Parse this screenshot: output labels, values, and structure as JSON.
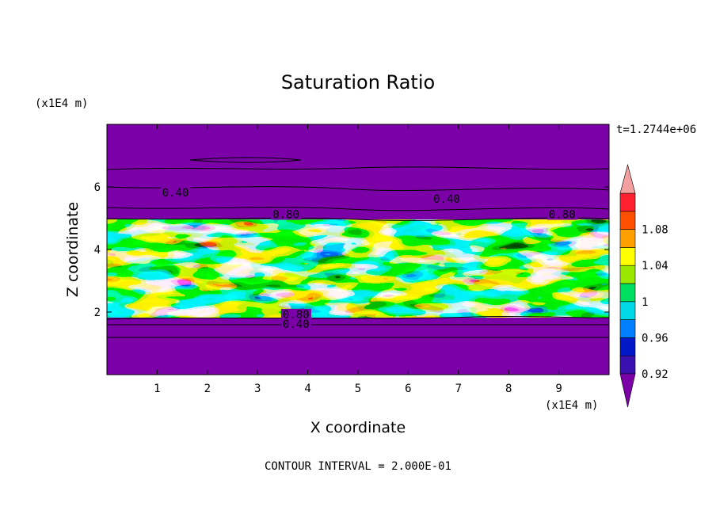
{
  "chart_data": {
    "type": "heatmap",
    "title": "Saturation Ratio",
    "xlabel": "X coordinate",
    "ylabel": "Z coordinate",
    "x_unit": "(x1E4 m)",
    "y_unit": "(x1E4 m)",
    "time_label": "t=1.2744e+06",
    "footer": "CONTOUR INTERVAL = 2.000E-01",
    "xlim": [
      0,
      10
    ],
    "ylim": [
      0,
      8
    ],
    "x_ticks": [
      "1",
      "2",
      "3",
      "4",
      "5",
      "6",
      "7",
      "8",
      "9"
    ],
    "y_ticks": [
      "2",
      "4",
      "6"
    ],
    "colorbar": {
      "levels": [
        0.92,
        0.94,
        0.96,
        0.98,
        1.0,
        1.02,
        1.04,
        1.06,
        1.08,
        1.1
      ],
      "labels": [
        "0.92",
        "0.96",
        "1",
        "1.04",
        "1.08"
      ],
      "colors": [
        "#7b00a8",
        "#3a10b0",
        "#0018c8",
        "#0080ff",
        "#00d8e8",
        "#00e060",
        "#9ae800",
        "#ffff00",
        "#ffa000",
        "#ff5000",
        "#ff2030",
        "#f5a0a0"
      ]
    },
    "contour_labels": [
      {
        "text": "0.40",
        "x": 1.1,
        "z": 5.7
      },
      {
        "text": "0.80",
        "x": 3.3,
        "z": 5.0
      },
      {
        "text": "0.40",
        "x": 6.5,
        "z": 5.5
      },
      {
        "text": "0.80",
        "x": 8.8,
        "z": 5.0
      },
      {
        "text": "0.80",
        "x": 3.5,
        "z": 1.8
      },
      {
        "text": "0.40",
        "x": 3.5,
        "z": 1.5
      }
    ],
    "moist_layer_z": [
      1.85,
      4.95
    ]
  }
}
